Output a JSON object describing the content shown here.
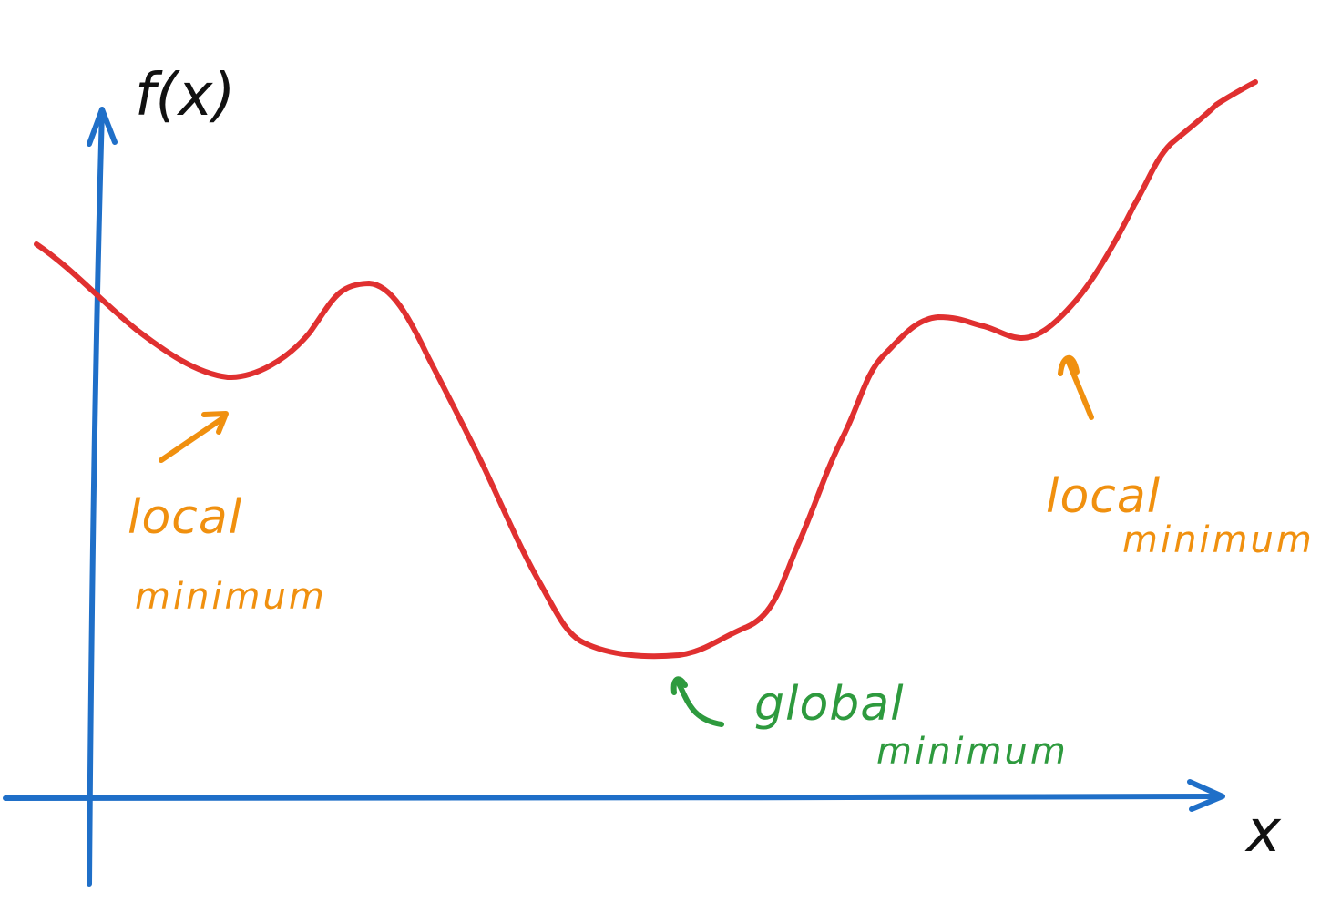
{
  "axes": {
    "y_label": "f(x)",
    "x_label": "x"
  },
  "annotations": [
    {
      "id": "left",
      "line1": "local",
      "line2": "minimum",
      "color": "#f0900f"
    },
    {
      "id": "global",
      "line1": "global",
      "line2": "minimum",
      "color": "#2e9a3e"
    },
    {
      "id": "right",
      "line1": "local",
      "line2": "minimum",
      "color": "#f0900f"
    }
  ],
  "colors": {
    "axis": "#1f6fc8",
    "curve": "#e03030",
    "local_annotation": "#f0900f",
    "global_annotation": "#2e9a3e",
    "axis_label": "#111111"
  }
}
